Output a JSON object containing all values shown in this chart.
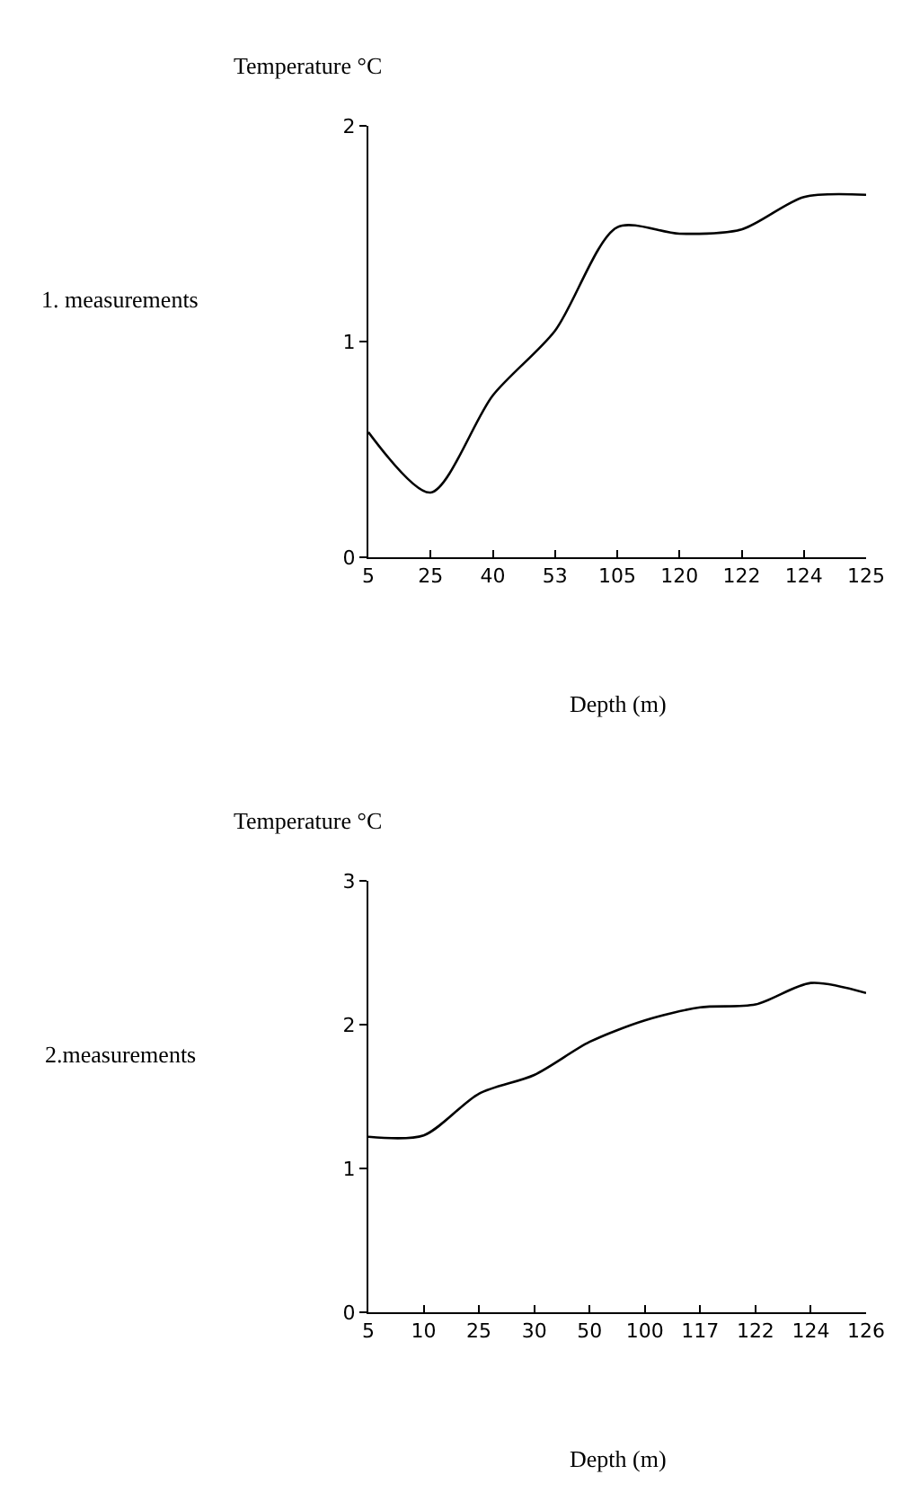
{
  "chart_data": [
    {
      "type": "line",
      "ylabel": "1. measurements",
      "annotations": [
        "Temperature °C"
      ],
      "xlabel": "Depth (m)",
      "categories": [
        "5",
        "25",
        "40",
        "53",
        "105",
        "120",
        "122",
        "124",
        "125"
      ],
      "series": [
        {
          "color": "#000000",
          "values": [
            0.58,
            0.3,
            0.75,
            1.05,
            1.53,
            1.5,
            1.52,
            1.67,
            1.68
          ]
        }
      ],
      "ylim": [
        0,
        2
      ],
      "yticks": [
        0,
        1,
        2
      ],
      "grid": false,
      "marker": "none"
    },
    {
      "type": "line",
      "ylabel": "2.measurements",
      "annotations": [
        "Temperature °C"
      ],
      "xlabel": "Depth (m)",
      "categories": [
        "5",
        "10",
        "25",
        "30",
        "50",
        "100",
        "117",
        "122",
        "124",
        "126"
      ],
      "series": [
        {
          "color": "#000000",
          "values": [
            1.22,
            1.23,
            1.52,
            1.65,
            1.88,
            2.03,
            2.12,
            2.14,
            2.29,
            2.22
          ]
        }
      ],
      "ylim": [
        0,
        3
      ],
      "yticks": [
        0,
        1,
        2,
        3
      ],
      "grid": false,
      "marker": "none"
    }
  ]
}
